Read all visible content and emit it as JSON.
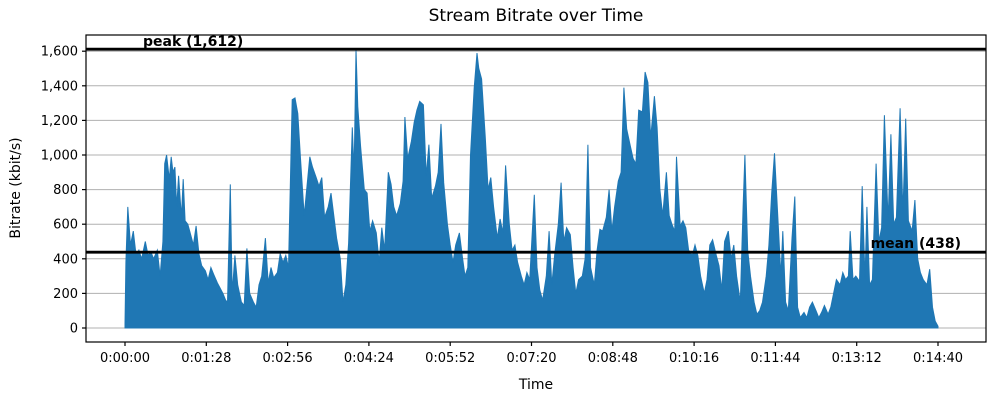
{
  "figure": {
    "title": "Stream Bitrate over Time",
    "xlabel": "Time",
    "ylabel": "Bitrate (kbit/s)"
  },
  "annotations": {
    "peak": {
      "label": "peak (1,612)",
      "value": 1612
    },
    "mean": {
      "label": "mean (438)",
      "value": 438
    }
  },
  "colors": {
    "area": "#1f77b4",
    "rule": "#000000",
    "grid": "#b0b0b0",
    "spine": "#000000",
    "background": "#ffffff",
    "text": "#000000"
  },
  "chart_data": {
    "type": "area",
    "title": "Stream Bitrate over Time",
    "xlabel": "Time",
    "ylabel": "Bitrate (kbit/s)",
    "x_unit": "seconds",
    "xlim_seconds": [
      -44,
      924
    ],
    "ylim": [
      -81,
      1693
    ],
    "grid": "horizontal-only",
    "legend": "none",
    "x_ticks": [
      {
        "t": 0,
        "label": "0:00:00"
      },
      {
        "t": 88,
        "label": "0:01:28"
      },
      {
        "t": 176,
        "label": "0:02:56"
      },
      {
        "t": 264,
        "label": "0:04:24"
      },
      {
        "t": 352,
        "label": "0:05:52"
      },
      {
        "t": 440,
        "label": "0:07:20"
      },
      {
        "t": 528,
        "label": "0:08:48"
      },
      {
        "t": 616,
        "label": "0:10:16"
      },
      {
        "t": 704,
        "label": "0:11:44"
      },
      {
        "t": 792,
        "label": "0:13:12"
      },
      {
        "t": 880,
        "label": "0:14:40"
      }
    ],
    "y_ticks": [
      {
        "value": 0,
        "label": "0"
      },
      {
        "value": 200,
        "label": "200"
      },
      {
        "value": 400,
        "label": "400"
      },
      {
        "value": 600,
        "label": "600"
      },
      {
        "value": 800,
        "label": "800"
      },
      {
        "value": 1000,
        "label": "1,000"
      },
      {
        "value": 1200,
        "label": "1,200"
      },
      {
        "value": 1400,
        "label": "1,400"
      },
      {
        "value": 1600,
        "label": "1,600"
      }
    ],
    "rules": [
      {
        "name": "peak",
        "value": 1612,
        "label": "peak (1,612)"
      },
      {
        "name": "mean",
        "value": 438,
        "label": "mean (438)"
      }
    ],
    "series": [
      {
        "name": "bitrate_kbits",
        "color": "#1f77b4",
        "points": [
          [
            0,
            25
          ],
          [
            1,
            380
          ],
          [
            3,
            700
          ],
          [
            6,
            480
          ],
          [
            9,
            560
          ],
          [
            12,
            420
          ],
          [
            15,
            450
          ],
          [
            18,
            400
          ],
          [
            22,
            500
          ],
          [
            25,
            420
          ],
          [
            28,
            440
          ],
          [
            31,
            400
          ],
          [
            35,
            450
          ],
          [
            38,
            300
          ],
          [
            41,
            500
          ],
          [
            43,
            950
          ],
          [
            45,
            1000
          ],
          [
            48,
            860
          ],
          [
            50,
            990
          ],
          [
            52,
            900
          ],
          [
            54,
            930
          ],
          [
            56,
            700
          ],
          [
            58,
            880
          ],
          [
            61,
            640
          ],
          [
            63,
            860
          ],
          [
            65,
            620
          ],
          [
            68,
            600
          ],
          [
            70,
            560
          ],
          [
            74,
            480
          ],
          [
            77,
            590
          ],
          [
            80,
            430
          ],
          [
            83,
            360
          ],
          [
            87,
            330
          ],
          [
            90,
            280
          ],
          [
            93,
            350
          ],
          [
            96,
            310
          ],
          [
            100,
            260
          ],
          [
            103,
            230
          ],
          [
            106,
            200
          ],
          [
            109,
            160
          ],
          [
            111,
            150
          ],
          [
            114,
            830
          ],
          [
            116,
            200
          ],
          [
            119,
            420
          ],
          [
            122,
            250
          ],
          [
            126,
            150
          ],
          [
            129,
            130
          ],
          [
            132,
            460
          ],
          [
            135,
            200
          ],
          [
            139,
            150
          ],
          [
            142,
            120
          ],
          [
            145,
            250
          ],
          [
            148,
            300
          ],
          [
            152,
            520
          ],
          [
            155,
            260
          ],
          [
            158,
            350
          ],
          [
            161,
            290
          ],
          [
            165,
            320
          ],
          [
            168,
            430
          ],
          [
            171,
            380
          ],
          [
            174,
            420
          ],
          [
            177,
            350
          ],
          [
            181,
            1320
          ],
          [
            184,
            1330
          ],
          [
            187,
            1240
          ],
          [
            190,
            980
          ],
          [
            194,
            650
          ],
          [
            197,
            820
          ],
          [
            200,
            990
          ],
          [
            203,
            930
          ],
          [
            207,
            870
          ],
          [
            210,
            820
          ],
          [
            213,
            870
          ],
          [
            216,
            640
          ],
          [
            220,
            700
          ],
          [
            223,
            780
          ],
          [
            226,
            650
          ],
          [
            229,
            520
          ],
          [
            233,
            400
          ],
          [
            236,
            150
          ],
          [
            239,
            250
          ],
          [
            242,
            490
          ],
          [
            246,
            1160
          ],
          [
            248,
            900
          ],
          [
            250,
            1612
          ],
          [
            252,
            1280
          ],
          [
            255,
            1050
          ],
          [
            259,
            800
          ],
          [
            262,
            780
          ],
          [
            265,
            560
          ],
          [
            268,
            620
          ],
          [
            272,
            550
          ],
          [
            275,
            380
          ],
          [
            278,
            580
          ],
          [
            281,
            450
          ],
          [
            285,
            900
          ],
          [
            288,
            830
          ],
          [
            291,
            700
          ],
          [
            294,
            650
          ],
          [
            298,
            720
          ],
          [
            301,
            850
          ],
          [
            303,
            1220
          ],
          [
            306,
            980
          ],
          [
            310,
            1080
          ],
          [
            313,
            1190
          ],
          [
            316,
            1260
          ],
          [
            319,
            1310
          ],
          [
            323,
            1290
          ],
          [
            326,
            880
          ],
          [
            329,
            1060
          ],
          [
            332,
            750
          ],
          [
            336,
            820
          ],
          [
            339,
            900
          ],
          [
            342,
            1180
          ],
          [
            345,
            840
          ],
          [
            349,
            600
          ],
          [
            352,
            480
          ],
          [
            355,
            380
          ],
          [
            358,
            480
          ],
          [
            362,
            550
          ],
          [
            365,
            420
          ],
          [
            368,
            300
          ],
          [
            371,
            350
          ],
          [
            374,
            1000
          ],
          [
            378,
            1390
          ],
          [
            381,
            1590
          ],
          [
            383,
            1500
          ],
          [
            386,
            1440
          ],
          [
            390,
            1100
          ],
          [
            393,
            800
          ],
          [
            396,
            870
          ],
          [
            399,
            700
          ],
          [
            403,
            520
          ],
          [
            406,
            630
          ],
          [
            409,
            550
          ],
          [
            412,
            940
          ],
          [
            416,
            600
          ],
          [
            419,
            450
          ],
          [
            422,
            480
          ],
          [
            425,
            380
          ],
          [
            429,
            300
          ],
          [
            432,
            250
          ],
          [
            435,
            320
          ],
          [
            438,
            280
          ],
          [
            443,
            770
          ],
          [
            446,
            350
          ],
          [
            449,
            220
          ],
          [
            452,
            160
          ],
          [
            456,
            300
          ],
          [
            459,
            560
          ],
          [
            462,
            250
          ],
          [
            465,
            420
          ],
          [
            469,
            600
          ],
          [
            472,
            840
          ],
          [
            475,
            500
          ],
          [
            478,
            580
          ],
          [
            482,
            540
          ],
          [
            485,
            350
          ],
          [
            488,
            200
          ],
          [
            491,
            280
          ],
          [
            495,
            300
          ],
          [
            498,
            400
          ],
          [
            501,
            1060
          ],
          [
            504,
            350
          ],
          [
            508,
            250
          ],
          [
            511,
            450
          ],
          [
            514,
            570
          ],
          [
            517,
            560
          ],
          [
            521,
            640
          ],
          [
            524,
            800
          ],
          [
            527,
            560
          ],
          [
            530,
            700
          ],
          [
            534,
            850
          ],
          [
            537,
            900
          ],
          [
            540,
            1390
          ],
          [
            543,
            1150
          ],
          [
            547,
            1050
          ],
          [
            550,
            980
          ],
          [
            553,
            950
          ],
          [
            556,
            1260
          ],
          [
            560,
            1250
          ],
          [
            563,
            1480
          ],
          [
            566,
            1420
          ],
          [
            569,
            1100
          ],
          [
            573,
            1340
          ],
          [
            576,
            1160
          ],
          [
            579,
            800
          ],
          [
            582,
            650
          ],
          [
            586,
            900
          ],
          [
            589,
            650
          ],
          [
            592,
            600
          ],
          [
            595,
            560
          ],
          [
            597,
            990
          ],
          [
            601,
            590
          ],
          [
            604,
            620
          ],
          [
            607,
            580
          ],
          [
            610,
            450
          ],
          [
            614,
            420
          ],
          [
            617,
            480
          ],
          [
            620,
            420
          ],
          [
            623,
            300
          ],
          [
            627,
            200
          ],
          [
            630,
            280
          ],
          [
            633,
            480
          ],
          [
            636,
            510
          ],
          [
            640,
            420
          ],
          [
            643,
            360
          ],
          [
            646,
            220
          ],
          [
            649,
            500
          ],
          [
            653,
            560
          ],
          [
            656,
            400
          ],
          [
            659,
            480
          ],
          [
            662,
            300
          ],
          [
            666,
            150
          ],
          [
            669,
            700
          ],
          [
            671,
            1000
          ],
          [
            674,
            450
          ],
          [
            677,
            300
          ],
          [
            681,
            150
          ],
          [
            684,
            80
          ],
          [
            687,
            100
          ],
          [
            690,
            150
          ],
          [
            694,
            300
          ],
          [
            697,
            480
          ],
          [
            700,
            780
          ],
          [
            703,
            1010
          ],
          [
            707,
            600
          ],
          [
            710,
            300
          ],
          [
            712,
            560
          ],
          [
            715,
            150
          ],
          [
            718,
            100
          ],
          [
            722,
            520
          ],
          [
            725,
            760
          ],
          [
            728,
            120
          ],
          [
            731,
            60
          ],
          [
            735,
            90
          ],
          [
            738,
            60
          ],
          [
            741,
            120
          ],
          [
            744,
            150
          ],
          [
            748,
            100
          ],
          [
            751,
            60
          ],
          [
            754,
            90
          ],
          [
            757,
            130
          ],
          [
            761,
            80
          ],
          [
            764,
            120
          ],
          [
            767,
            200
          ],
          [
            770,
            280
          ],
          [
            774,
            250
          ],
          [
            777,
            320
          ],
          [
            780,
            280
          ],
          [
            783,
            300
          ],
          [
            785,
            560
          ],
          [
            788,
            280
          ],
          [
            791,
            300
          ],
          [
            795,
            270
          ],
          [
            798,
            820
          ],
          [
            801,
            280
          ],
          [
            803,
            700
          ],
          [
            806,
            250
          ],
          [
            809,
            280
          ],
          [
            813,
            950
          ],
          [
            816,
            500
          ],
          [
            819,
            580
          ],
          [
            822,
            1230
          ],
          [
            826,
            620
          ],
          [
            829,
            1120
          ],
          [
            832,
            600
          ],
          [
            835,
            640
          ],
          [
            839,
            1270
          ],
          [
            842,
            660
          ],
          [
            845,
            1210
          ],
          [
            848,
            620
          ],
          [
            852,
            560
          ],
          [
            855,
            740
          ],
          [
            858,
            400
          ],
          [
            861,
            320
          ],
          [
            864,
            280
          ],
          [
            868,
            250
          ],
          [
            871,
            340
          ],
          [
            874,
            120
          ],
          [
            877,
            40
          ],
          [
            880,
            10
          ]
        ]
      }
    ]
  }
}
